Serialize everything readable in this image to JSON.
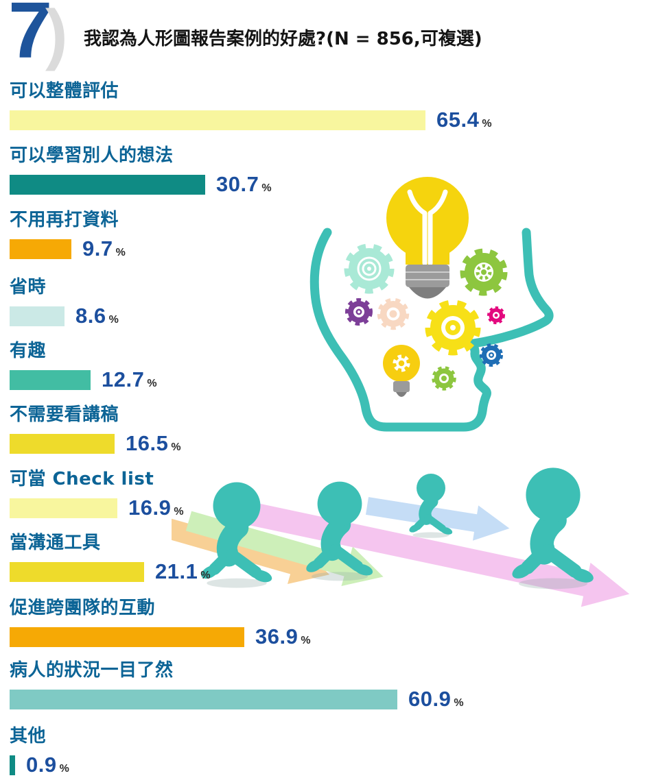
{
  "header": {
    "number": "7",
    "paren": ")",
    "title": "我認為人形圖報告案例的好處?(N = 856,可複選)"
  },
  "chart_data": {
    "type": "bar",
    "orientation": "horizontal",
    "title": "我認為人形圖報告案例的好處?(N = 856,可複選)",
    "sample_note": "N = 856,可複選",
    "unit": "%",
    "xlim": [
      0,
      70
    ],
    "categories": [
      "可以整體評估",
      "可以學習別人的想法",
      "不用再打資料",
      "省時",
      "有趣",
      "不需要看講稿",
      "可當 Check list",
      "當溝通工具",
      "促進跨團隊的互動",
      "病人的狀況一目了然",
      "其他"
    ],
    "values": [
      65.4,
      30.7,
      9.7,
      8.6,
      12.7,
      16.5,
      16.9,
      21.1,
      36.9,
      60.9,
      0.9
    ],
    "colors": [
      "#F8F69E",
      "#0F8B84",
      "#F6A905",
      "#CBE9E6",
      "#42BDA3",
      "#EEDB2B",
      "#F8F69E",
      "#EEDB2B",
      "#F6A905",
      "#7FCAC4",
      "#0F8B84"
    ],
    "grid": false,
    "legend": "none"
  },
  "decorations": {
    "head_illustration": "head-profile-with-lightbulb-and-gears",
    "walkers_illustration": "walking-figures-on-arrows",
    "accent_teal": "#3DBFB5",
    "label_color": "#0C6496",
    "value_color": "#1C4F9E",
    "number_color": "#1E549B",
    "paren_color": "#DBDBDB"
  }
}
